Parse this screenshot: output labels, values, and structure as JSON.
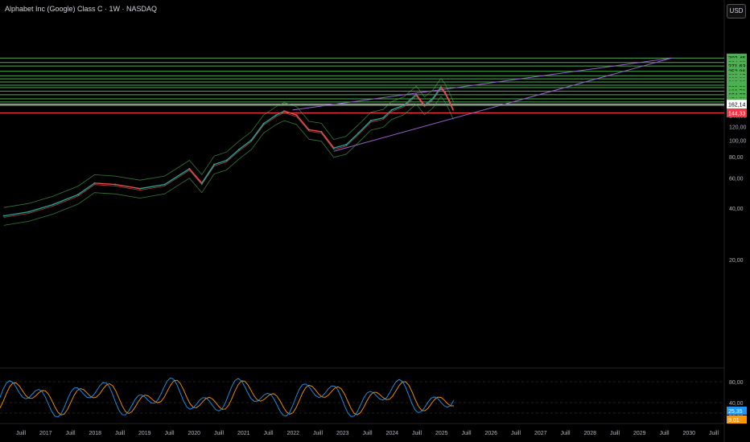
{
  "header": {
    "title": "Alphabet Inc (Google) Class C · 1W · NASDAQ",
    "currency": "USD"
  },
  "colors": {
    "background": "#000000",
    "level_line": "#4caf50",
    "level_badge": "#4caf50",
    "current_badge": "#ffffff",
    "support_line": "#f23645",
    "trend_line": "#9c5fd1",
    "price_up": "#26a69a",
    "price_down": "#ef5350",
    "envelope": "#4caf50",
    "stoch_k": "#2196f3",
    "stoch_d": "#ff9800"
  },
  "chart_data": {
    "type": "line",
    "price_axis": {
      "scale": "log",
      "ticks": [
        "20,00",
        "40,00",
        "60,00",
        "80,00",
        "100,00",
        "120,00",
        "140,00",
        "260,00",
        "280,00"
      ]
    },
    "time_axis": {
      "labels": [
        "Juill",
        "2017",
        "Juill",
        "2018",
        "Juill",
        "2019",
        "Juill",
        "2020",
        "Juill",
        "2021",
        "Juill",
        "2022",
        "Juill",
        "2023",
        "Juill",
        "2024",
        "Juill",
        "2025",
        "Juill",
        "2026",
        "Juill",
        "2027",
        "Juill",
        "2028",
        "Juill",
        "2029",
        "Juill",
        "2030",
        "Juill"
      ]
    },
    "horizontal_levels": [
      302.45,
      284.69,
      271.63,
      252.86,
      238.17,
      228.38,
      219.0,
      209.61,
      203.08,
      193.7,
      184.32,
      174.52,
      167.18,
      159.4
    ],
    "horizontal_level_labels": [
      "302,45",
      "284,69",
      "271,63",
      "252,86",
      "238,17",
      "228,38",
      "219,00",
      "209,61",
      "203,08",
      "193,70",
      "184,32",
      "174,52",
      "167,18",
      "159,40"
    ],
    "current_price": 162.14,
    "current_price_label": "162,14",
    "support_level": 144.33,
    "support_level_label": "144,33",
    "price_series": {
      "x": [
        "2016-03",
        "2016-09",
        "2017-03",
        "2017-09",
        "2018-01",
        "2018-06",
        "2018-12",
        "2019-06",
        "2019-12",
        "2020-03",
        "2020-06",
        "2020-09",
        "2020-12",
        "2021-03",
        "2021-06",
        "2021-09",
        "2021-11",
        "2022-02",
        "2022-05",
        "2022-08",
        "2022-11",
        "2023-02",
        "2023-05",
        "2023-08",
        "2023-11",
        "2024-01",
        "2024-04",
        "2024-07",
        "2024-09",
        "2024-11",
        "2025-01",
        "2025-02",
        "2025-03",
        "2025-04"
      ],
      "y": [
        36,
        38,
        42,
        48,
        56,
        55,
        52,
        55,
        68,
        56,
        72,
        76,
        88,
        100,
        125,
        140,
        148,
        140,
        115,
        112,
        90,
        94,
        110,
        130,
        135,
        150,
        160,
        185,
        160,
        175,
        205,
        190,
        170,
        150
      ]
    },
    "trend_lines": [
      {
        "from": [
          "2022-01",
          150
        ],
        "to": [
          "2029-09",
          302.45
        ]
      },
      {
        "from": [
          "2022-11",
          86
        ],
        "to": [
          "2029-09",
          302.45
        ]
      }
    ],
    "oscillator": {
      "ticks": [
        "80,00",
        "40,00",
        "20,00"
      ],
      "k_label": "25,35",
      "d_label": "9,01"
    }
  }
}
